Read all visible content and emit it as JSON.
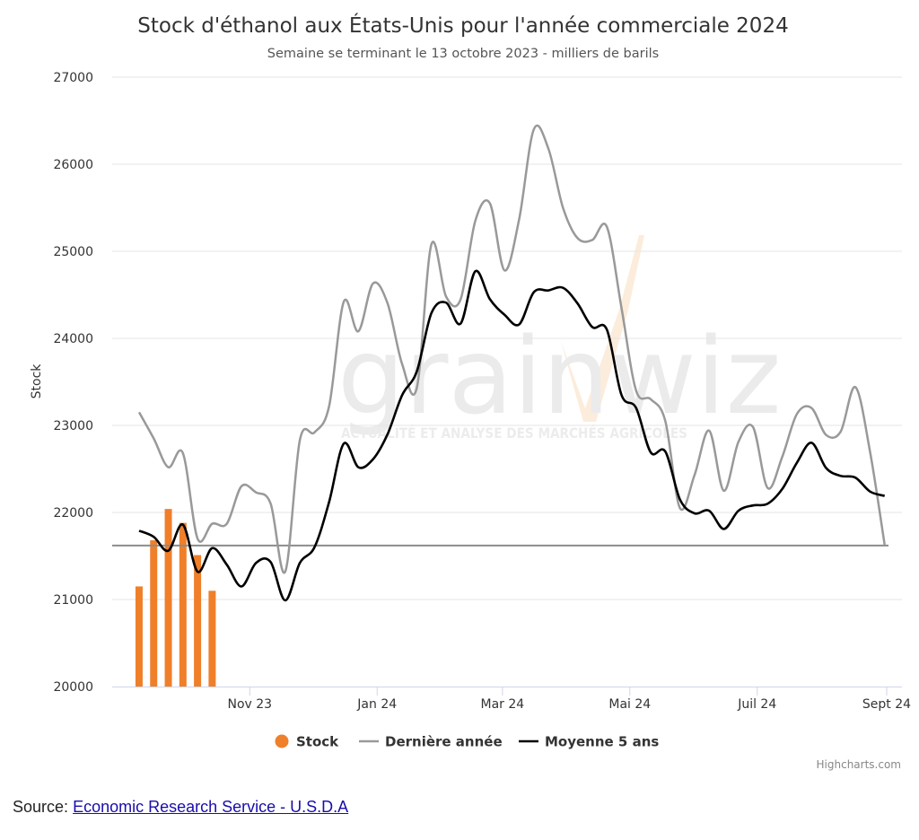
{
  "source": {
    "label": "Source:",
    "link_text": "Economic Research Service - U.S.D.A"
  },
  "watermark": {
    "brand": "grainwiz",
    "tagline": "ACTUALITÉ ET ANALYSE DES MARCHÉS AGRICOLES"
  },
  "chart_data": {
    "type": "line",
    "title": "Stock d'éthanol aux États-Unis pour l'année commerciale 2024",
    "subtitle": "Semaine se terminant le 13 octobre 2023 - milliers de barils",
    "ylabel": "Stock",
    "ylim": [
      20000,
      27000
    ],
    "yticks": [
      20000,
      21000,
      22000,
      23000,
      24000,
      25000,
      26000,
      27000
    ],
    "xlim": [
      "2023-09-03",
      "2024-09-01"
    ],
    "xticks": [
      {
        "date": "2023-11-01",
        "label": "Nov 23"
      },
      {
        "date": "2024-01-01",
        "label": "Jan 24"
      },
      {
        "date": "2024-03-01",
        "label": "Mar 24"
      },
      {
        "date": "2024-05-01",
        "label": "Mai 24"
      },
      {
        "date": "2024-07-01",
        "label": "Juil 24"
      },
      {
        "date": "2024-09-01",
        "label": "Sept 24"
      }
    ],
    "grid": true,
    "legend_position": "bottom",
    "reference_line": 21620,
    "credits": "Highcharts.com",
    "series": [
      {
        "name": "Stock",
        "kind": "column",
        "color": "#f07f2a",
        "points": [
          [
            "2023-09-09",
            21150
          ],
          [
            "2023-09-16",
            21680
          ],
          [
            "2023-09-23",
            22040
          ],
          [
            "2023-09-30",
            21880
          ],
          [
            "2023-10-07",
            21510
          ],
          [
            "2023-10-14",
            21100
          ]
        ]
      },
      {
        "name": "Dernière année",
        "kind": "line",
        "color": "#999999",
        "points": [
          [
            "2023-09-09",
            23150
          ],
          [
            "2023-09-16",
            22850
          ],
          [
            "2023-09-23",
            22520
          ],
          [
            "2023-09-30",
            22680
          ],
          [
            "2023-10-07",
            21700
          ],
          [
            "2023-10-14",
            21870
          ],
          [
            "2023-10-21",
            21870
          ],
          [
            "2023-10-28",
            22300
          ],
          [
            "2023-11-04",
            22230
          ],
          [
            "2023-11-11",
            22100
          ],
          [
            "2023-11-18",
            21320
          ],
          [
            "2023-11-25",
            22830
          ],
          [
            "2023-12-02",
            22920
          ],
          [
            "2023-12-09",
            23220
          ],
          [
            "2023-12-16",
            24420
          ],
          [
            "2023-12-23",
            24080
          ],
          [
            "2023-12-30",
            24630
          ],
          [
            "2024-01-06",
            24400
          ],
          [
            "2024-01-13",
            23700
          ],
          [
            "2024-01-20",
            23430
          ],
          [
            "2024-01-27",
            25080
          ],
          [
            "2024-02-03",
            24480
          ],
          [
            "2024-02-10",
            24450
          ],
          [
            "2024-02-17",
            25350
          ],
          [
            "2024-02-24",
            25550
          ],
          [
            "2024-03-02",
            24780
          ],
          [
            "2024-03-09",
            25370
          ],
          [
            "2024-03-16",
            26400
          ],
          [
            "2024-03-23",
            26180
          ],
          [
            "2024-03-30",
            25500
          ],
          [
            "2024-04-06",
            25150
          ],
          [
            "2024-04-13",
            25130
          ],
          [
            "2024-04-20",
            25280
          ],
          [
            "2024-04-27",
            24350
          ],
          [
            "2024-05-04",
            23400
          ],
          [
            "2024-05-11",
            23300
          ],
          [
            "2024-05-18",
            23050
          ],
          [
            "2024-05-25",
            22050
          ],
          [
            "2024-06-01",
            22430
          ],
          [
            "2024-06-08",
            22940
          ],
          [
            "2024-06-15",
            22250
          ],
          [
            "2024-06-22",
            22810
          ],
          [
            "2024-06-29",
            22980
          ],
          [
            "2024-07-06",
            22280
          ],
          [
            "2024-07-13",
            22640
          ],
          [
            "2024-07-20",
            23130
          ],
          [
            "2024-07-27",
            23200
          ],
          [
            "2024-08-03",
            22890
          ],
          [
            "2024-08-10",
            22930
          ],
          [
            "2024-08-17",
            23440
          ],
          [
            "2024-08-24",
            22700
          ],
          [
            "2024-08-31",
            21630
          ]
        ]
      },
      {
        "name": "Moyenne 5 ans",
        "kind": "line",
        "color": "#000000",
        "points": [
          [
            "2023-09-09",
            21790
          ],
          [
            "2023-09-16",
            21720
          ],
          [
            "2023-09-23",
            21560
          ],
          [
            "2023-09-30",
            21860
          ],
          [
            "2023-10-07",
            21320
          ],
          [
            "2023-10-14",
            21590
          ],
          [
            "2023-10-21",
            21400
          ],
          [
            "2023-10-28",
            21150
          ],
          [
            "2023-11-04",
            21420
          ],
          [
            "2023-11-11",
            21430
          ],
          [
            "2023-11-18",
            20990
          ],
          [
            "2023-11-25",
            21420
          ],
          [
            "2023-12-02",
            21600
          ],
          [
            "2023-12-09",
            22120
          ],
          [
            "2023-12-16",
            22790
          ],
          [
            "2023-12-23",
            22520
          ],
          [
            "2023-12-30",
            22610
          ],
          [
            "2024-01-06",
            22900
          ],
          [
            "2024-01-13",
            23350
          ],
          [
            "2024-01-20",
            23620
          ],
          [
            "2024-01-27",
            24290
          ],
          [
            "2024-02-03",
            24410
          ],
          [
            "2024-02-10",
            24170
          ],
          [
            "2024-02-17",
            24770
          ],
          [
            "2024-02-24",
            24450
          ],
          [
            "2024-03-02",
            24270
          ],
          [
            "2024-03-09",
            24160
          ],
          [
            "2024-03-16",
            24530
          ],
          [
            "2024-03-23",
            24550
          ],
          [
            "2024-03-30",
            24580
          ],
          [
            "2024-04-06",
            24400
          ],
          [
            "2024-04-13",
            24130
          ],
          [
            "2024-04-20",
            24100
          ],
          [
            "2024-04-27",
            23350
          ],
          [
            "2024-05-04",
            23200
          ],
          [
            "2024-05-11",
            22690
          ],
          [
            "2024-05-18",
            22700
          ],
          [
            "2024-05-25",
            22150
          ],
          [
            "2024-06-01",
            21990
          ],
          [
            "2024-06-08",
            22020
          ],
          [
            "2024-06-15",
            21810
          ],
          [
            "2024-06-22",
            22020
          ],
          [
            "2024-06-29",
            22080
          ],
          [
            "2024-07-06",
            22100
          ],
          [
            "2024-07-13",
            22270
          ],
          [
            "2024-07-20",
            22570
          ],
          [
            "2024-07-27",
            22800
          ],
          [
            "2024-08-03",
            22510
          ],
          [
            "2024-08-10",
            22420
          ],
          [
            "2024-08-17",
            22400
          ],
          [
            "2024-08-24",
            22240
          ],
          [
            "2024-08-31",
            22190
          ]
        ]
      }
    ]
  }
}
